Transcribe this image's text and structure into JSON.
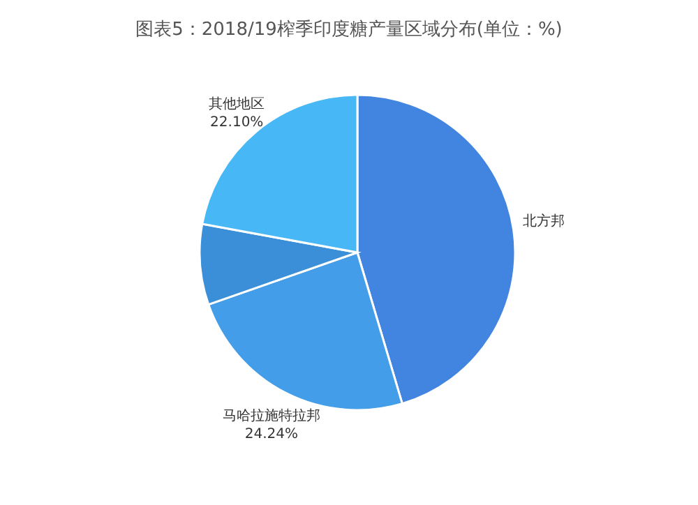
{
  "chart_data": {
    "type": "pie",
    "title": "图表5：2018/19榨季印度糖产量区域分布(单位：%)",
    "categories": [
      "北方邦",
      "马哈拉施特拉邦",
      null,
      "其他地区"
    ],
    "values": [
      45.41,
      24.24,
      8.25,
      22.1
    ],
    "value_labels": [
      null,
      "24.24%",
      null,
      "22.10%"
    ],
    "colors": [
      "#4285e0",
      "#439de8",
      "#3a8fd8",
      "#47b8f5"
    ],
    "legend": false
  }
}
